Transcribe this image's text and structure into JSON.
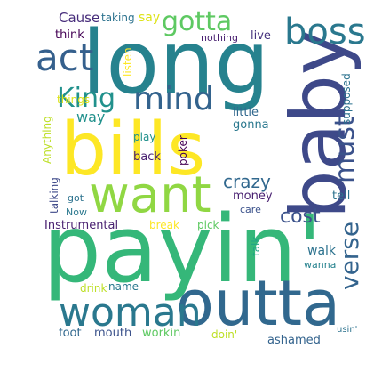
{
  "words": [
    {
      "key": "payin",
      "text": "payin'",
      "color": "#35b779"
    },
    {
      "key": "long",
      "text": "long",
      "color": "#26828e"
    },
    {
      "key": "bills",
      "text": "bills",
      "color": "#fde725"
    },
    {
      "key": "baby",
      "text": "baby",
      "color": "#3e4989"
    },
    {
      "key": "want",
      "text": "want",
      "color": "#90d743"
    },
    {
      "key": "outta",
      "text": "outta",
      "color": "#31688e"
    },
    {
      "key": "woman",
      "text": "woman",
      "color": "#2a788e"
    },
    {
      "key": "boss",
      "text": "boss",
      "color": "#2a788e"
    },
    {
      "key": "act",
      "text": "act",
      "color": "#35608d"
    },
    {
      "key": "mind",
      "text": "mind",
      "color": "#33638d"
    },
    {
      "key": "gotta",
      "text": "gotta",
      "color": "#5ec962"
    },
    {
      "key": "king",
      "text": "King",
      "color": "#21918c"
    },
    {
      "key": "must",
      "text": "must",
      "color": "#3b528b"
    },
    {
      "key": "verse",
      "text": "verse",
      "color": "#33638d"
    },
    {
      "key": "cost",
      "text": "cost",
      "color": "#3b528b"
    },
    {
      "key": "crazy",
      "text": "crazy",
      "color": "#31688e"
    },
    {
      "key": "way",
      "text": "way",
      "color": "#21918c"
    },
    {
      "key": "cause",
      "text": "Cause",
      "color": "#472d7b"
    },
    {
      "key": "taking",
      "text": "taking",
      "color": "#2c728e"
    },
    {
      "key": "say",
      "text": "say",
      "color": "#dde318"
    },
    {
      "key": "think",
      "text": "think",
      "color": "#440154"
    },
    {
      "key": "nothing",
      "text": "nothing",
      "color": "#481f70"
    },
    {
      "key": "live",
      "text": "live",
      "color": "#46337e"
    },
    {
      "key": "listen",
      "text": "listen",
      "color": "#fde725"
    },
    {
      "key": "things",
      "text": "things",
      "color": "#dde318"
    },
    {
      "key": "supposed",
      "text": "supposed",
      "color": "#2c728e"
    },
    {
      "key": "little",
      "text": "little",
      "color": "#31688e"
    },
    {
      "key": "gonna",
      "text": "gonna",
      "color": "#2a788e"
    },
    {
      "key": "anything",
      "text": "Anything",
      "color": "#bddf26"
    },
    {
      "key": "poker",
      "text": "poker",
      "color": "#440154"
    },
    {
      "key": "play",
      "text": "play",
      "color": "#21918c"
    },
    {
      "key": "back",
      "text": "back",
      "color": "#481f70"
    },
    {
      "key": "talking",
      "text": "talking",
      "color": "#3e4989"
    },
    {
      "key": "got",
      "text": "got",
      "color": "#2c728e"
    },
    {
      "key": "now",
      "text": "Now",
      "color": "#2a788e"
    },
    {
      "key": "money",
      "text": "money",
      "color": "#481f70"
    },
    {
      "key": "care",
      "text": "care",
      "color": "#3b528b"
    },
    {
      "key": "tell",
      "text": "tell",
      "color": "#2c728e"
    },
    {
      "key": "instrumental",
      "text": "Instrumental",
      "color": "#481f70"
    },
    {
      "key": "break",
      "text": "break",
      "color": "#fde725"
    },
    {
      "key": "pick",
      "text": "pick",
      "color": "#5ec962"
    },
    {
      "key": "talk",
      "text": "talk",
      "color": "#20a486"
    },
    {
      "key": "walk",
      "text": "walk",
      "color": "#2c728e"
    },
    {
      "key": "wanna",
      "text": "wanna",
      "color": "#26828e"
    },
    {
      "key": "drink",
      "text": "drink",
      "color": "#bddf26"
    },
    {
      "key": "name",
      "text": "name",
      "color": "#2a788e"
    },
    {
      "key": "foot",
      "text": "foot",
      "color": "#31688e"
    },
    {
      "key": "mouth",
      "text": "mouth",
      "color": "#3b528b"
    },
    {
      "key": "workin",
      "text": "workin",
      "color": "#5ec962"
    },
    {
      "key": "doin",
      "text": "doin'",
      "color": "#bddf26"
    },
    {
      "key": "ashamed",
      "text": "ashamed",
      "color": "#33638d"
    },
    {
      "key": "usin",
      "text": "usin'",
      "color": "#2c728e"
    }
  ]
}
